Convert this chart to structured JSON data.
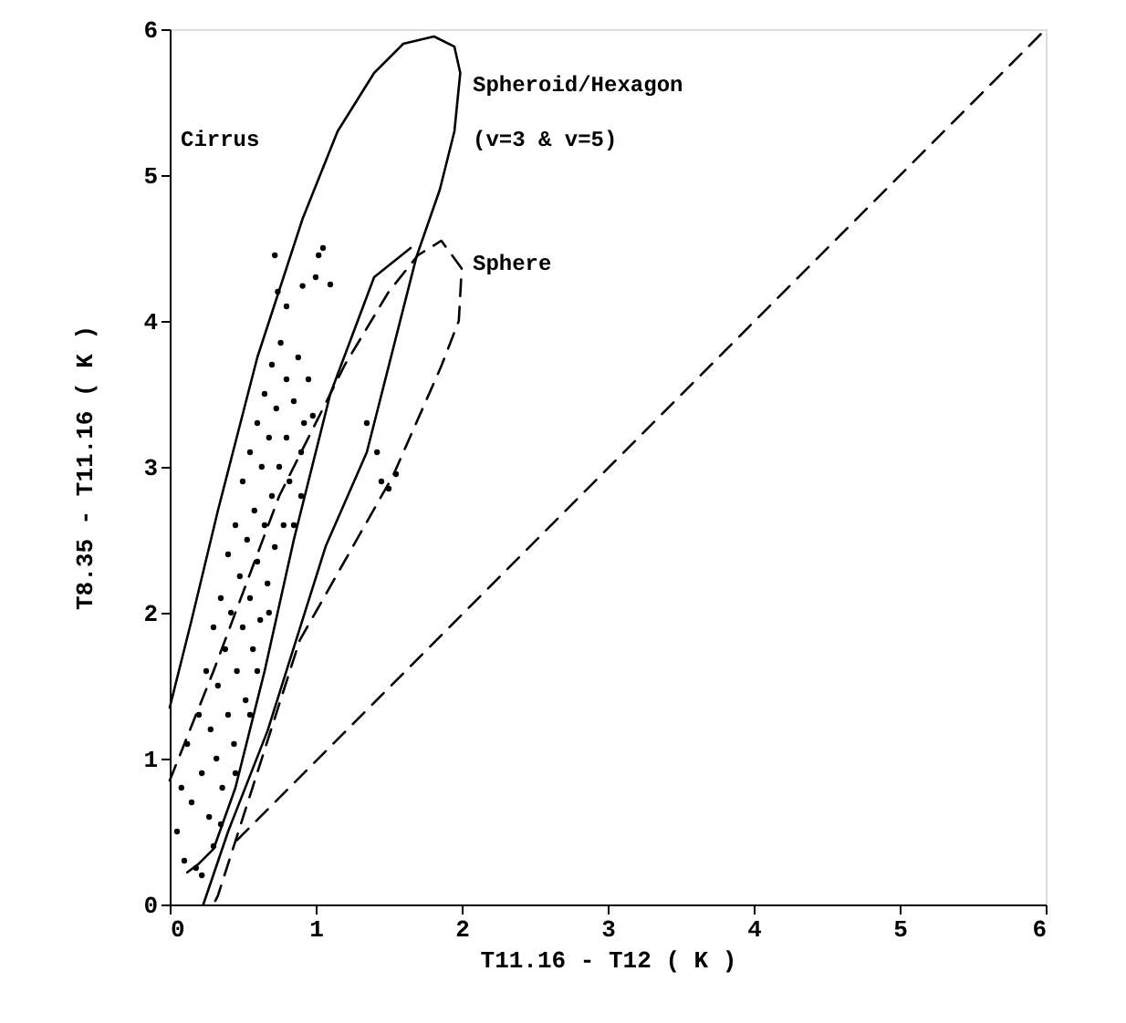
{
  "chart_data": {
    "type": "scatter",
    "xlabel": "T11.16 - T12 ( K )",
    "ylabel": "T8.35 - T11.16 ( K )",
    "xlim": [
      0,
      6
    ],
    "ylim": [
      0,
      6
    ],
    "xticks": [
      0,
      1,
      2,
      3,
      4,
      5,
      6
    ],
    "yticks": [
      0,
      1,
      2,
      3,
      4,
      5,
      6
    ],
    "grid": false,
    "annotations": [
      "Cirrus",
      "Spheroid/Hexagon",
      "(v=3 & v=5)",
      "Sphere"
    ],
    "series": [
      {
        "marker": "circle",
        "color": "#000000",
        "x": [
          0.05,
          0.08,
          0.1,
          0.12,
          0.15,
          0.18,
          0.2,
          0.22,
          0.25,
          0.27,
          0.28,
          0.3,
          0.32,
          0.33,
          0.35,
          0.36,
          0.38,
          0.4,
          0.4,
          0.42,
          0.44,
          0.45,
          0.46,
          0.48,
          0.5,
          0.5,
          0.52,
          0.53,
          0.55,
          0.55,
          0.57,
          0.58,
          0.6,
          0.6,
          0.62,
          0.63,
          0.65,
          0.65,
          0.67,
          0.68,
          0.7,
          0.7,
          0.72,
          0.73,
          0.75,
          0.76,
          0.78,
          0.8,
          0.8,
          0.82,
          0.85,
          0.88,
          0.9,
          0.92,
          0.95,
          0.98,
          0.74,
          0.72,
          0.8,
          0.91,
          1.0,
          1.05,
          1.1,
          1.02,
          1.35,
          1.45,
          1.5,
          1.55,
          1.42,
          0.3,
          0.22,
          0.55,
          0.6,
          0.45,
          0.35,
          0.85,
          0.9,
          0.68
        ],
        "values": [
          0.5,
          0.8,
          0.3,
          1.1,
          0.7,
          0.25,
          1.3,
          0.9,
          1.6,
          0.6,
          1.2,
          1.9,
          1.0,
          1.5,
          2.1,
          0.8,
          1.75,
          2.4,
          1.3,
          2.0,
          1.1,
          2.6,
          1.6,
          2.25,
          1.9,
          2.9,
          1.4,
          2.5,
          3.1,
          2.1,
          1.75,
          2.7,
          3.3,
          2.35,
          1.95,
          3.0,
          2.6,
          3.5,
          2.2,
          3.2,
          2.8,
          3.7,
          2.45,
          3.4,
          3.0,
          3.85,
          2.6,
          3.6,
          3.2,
          2.9,
          3.45,
          3.75,
          3.1,
          3.3,
          3.6,
          3.35,
          4.2,
          4.45,
          4.1,
          4.24,
          4.3,
          4.5,
          4.25,
          4.45,
          3.3,
          2.9,
          2.85,
          2.95,
          3.1,
          0.4,
          0.2,
          1.3,
          1.6,
          0.9,
          0.55,
          2.6,
          2.8,
          2.0
        ]
      },
      {
        "type": "line",
        "line_style": "solid",
        "color": "#000000",
        "x": [
          0,
          0.15,
          0.33,
          0.6,
          0.91,
          1.15,
          1.4,
          1.6,
          1.81,
          1.95,
          1.99,
          1.95,
          1.85,
          1.69,
          1.35,
          1.07,
          0.67,
          0.4,
          0.23
        ],
        "values": [
          1.35,
          1.95,
          2.7,
          3.75,
          4.7,
          5.3,
          5.7,
          5.9,
          5.95,
          5.88,
          5.7,
          5.3,
          4.9,
          4.44,
          3.1,
          2.46,
          1.19,
          0.5,
          0
        ]
      },
      {
        "type": "line",
        "line_style": "solid",
        "color": "#000000",
        "x": [
          0.12,
          0.2,
          0.3,
          0.45,
          0.65,
          0.85,
          1.1,
          1.4,
          1.65
        ],
        "values": [
          0.22,
          0.28,
          0.38,
          0.8,
          1.6,
          2.5,
          3.5,
          4.3,
          4.5
        ]
      },
      {
        "type": "line",
        "line_style": "dashed",
        "color": "#000000",
        "x": [
          0,
          0.3,
          0.75,
          1.2,
          1.5,
          1.7,
          1.86,
          2.0,
          1.98,
          1.86,
          1.53,
          0.89,
          0.33,
          0.3
        ],
        "values": [
          0.85,
          1.6,
          2.8,
          3.7,
          4.2,
          4.45,
          4.55,
          4.36,
          4.0,
          3.69,
          2.94,
          1.81,
          0.06,
          0
        ]
      },
      {
        "type": "line",
        "line_style": "dashed",
        "color": "#000000",
        "x": [
          0.46,
          6
        ],
        "values": [
          0.44,
          6
        ]
      }
    ]
  }
}
